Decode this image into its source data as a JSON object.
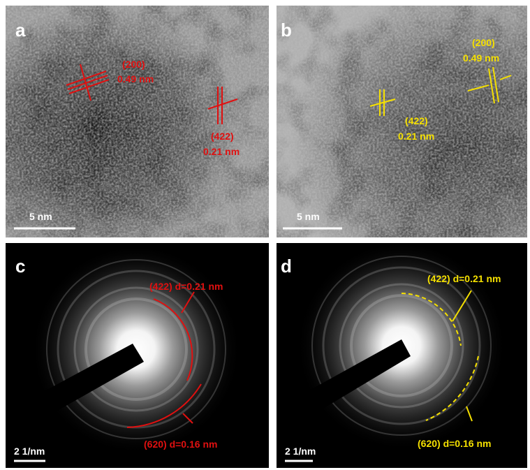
{
  "panels": [
    {
      "label": "a",
      "annotations": [
        "(200)",
        "0.49 nm",
        "(422)",
        "0.21 nm"
      ],
      "scale_bar": "5 nm"
    },
    {
      "label": "b",
      "annotations": [
        "(200)",
        "0.49 nm",
        "(422)",
        "0.21 nm"
      ],
      "scale_bar": "5 nm"
    },
    {
      "label": "c",
      "annotations": [
        "(422) d=0.21 nm",
        "(620) d=0.16 nm"
      ],
      "scale_bar": "2 1/nm"
    },
    {
      "label": "d",
      "annotations": [
        "(422) d=0.21 nm",
        "(620) d=0.16 nm"
      ],
      "scale_bar": "2 1/nm"
    }
  ]
}
